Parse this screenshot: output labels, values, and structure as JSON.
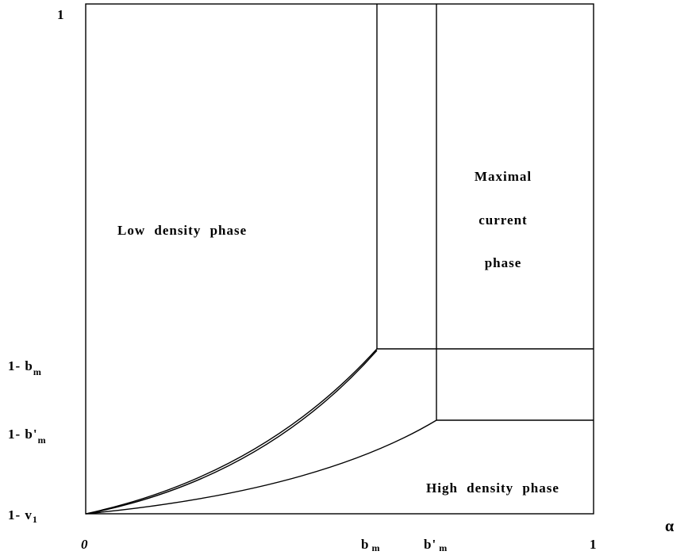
{
  "y_axis": {
    "labels": [
      {
        "text": "1"
      },
      {
        "text": "1- b",
        "sub": "m"
      },
      {
        "text": "1- b'",
        "sub": "m"
      },
      {
        "text": "1- v",
        "sub": "1"
      }
    ]
  },
  "x_axis": {
    "labels": [
      {
        "text": "0"
      },
      {
        "text": "b",
        "sub": "m"
      },
      {
        "text": "b'",
        "sub": "m"
      },
      {
        "text": "1"
      }
    ],
    "variable": "α"
  },
  "regions": {
    "low_density": "Low density phase",
    "maximal_current": [
      "Maximal",
      "current",
      "phase"
    ],
    "high_density": "High density phase"
  }
}
